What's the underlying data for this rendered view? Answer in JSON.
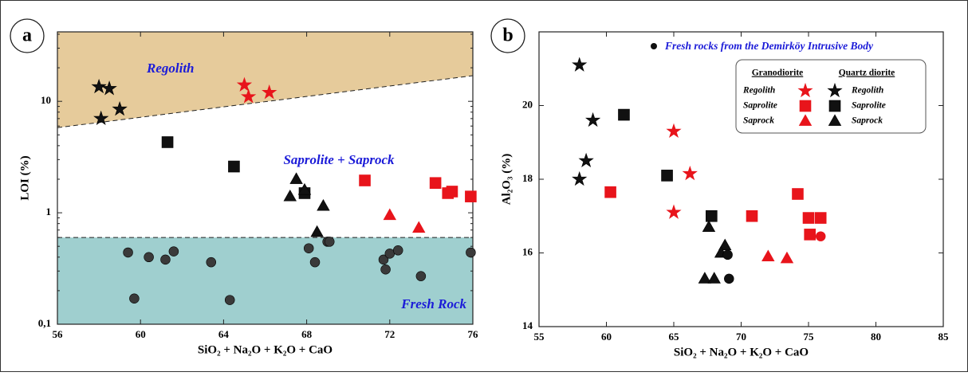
{
  "chart_data": [
    {
      "type": "scatter",
      "panel": "a",
      "log_y": true,
      "xlabel": "SiO₂ + Na₂O + K₂O + CaO",
      "ylabel": "LOI (%)",
      "xlim": [
        56,
        76
      ],
      "xticks": [
        56,
        60,
        64,
        68,
        72,
        76
      ],
      "ylim": [
        0.1,
        42
      ],
      "yticks": [
        {
          "value": 0.1,
          "label": "0,1"
        },
        1,
        10
      ],
      "annotations": [
        "Regolith",
        "Saprolite + Saprock",
        "Fresh Rock"
      ],
      "lines": [
        {
          "x": [
            56,
            76
          ],
          "y": [
            5.8,
            17
          ]
        },
        {
          "x": [
            56,
            76
          ],
          "y": [
            0.6,
            0.6
          ]
        }
      ],
      "series": [
        {
          "marker": "star",
          "color": "#e8141b",
          "x": [
            65,
            65.2,
            66.2
          ],
          "y": [
            14,
            11,
            12
          ]
        },
        {
          "marker": "star",
          "color": "#111111",
          "x": [
            58,
            58.5,
            59,
            58.1
          ],
          "y": [
            13.5,
            13,
            8.5,
            7
          ]
        },
        {
          "marker": "square",
          "color": "#e8141b",
          "x": [
            70.8,
            74.2,
            74.8,
            75,
            75.9
          ],
          "y": [
            1.95,
            1.85,
            1.5,
            1.55,
            1.4
          ]
        },
        {
          "marker": "square",
          "color": "#111111",
          "x": [
            61.3,
            64.5,
            67.9
          ],
          "y": [
            4.3,
            2.6,
            1.5
          ]
        },
        {
          "marker": "triangle",
          "color": "#e8141b",
          "x": [
            72,
            73.4
          ],
          "y": [
            0.95,
            0.73
          ]
        },
        {
          "marker": "triangle",
          "color": "#111111",
          "x": [
            67.5,
            67.2,
            67.9,
            68.8,
            68.5
          ],
          "y": [
            2.0,
            1.4,
            1.6,
            1.15,
            0.67
          ]
        },
        {
          "marker": "circle",
          "color": "#3a3a3a",
          "x": [
            59.4,
            59.7,
            60.4,
            61.2,
            61.6,
            63.4,
            64.3,
            68.1,
            68.4,
            69,
            69.1,
            71.7,
            71.8,
            72,
            72.4,
            73.5,
            75.9
          ],
          "y": [
            0.44,
            0.17,
            0.4,
            0.38,
            0.45,
            0.36,
            0.165,
            0.48,
            0.36,
            0.55,
            0.55,
            0.38,
            0.31,
            0.43,
            0.46,
            0.27,
            0.44
          ]
        }
      ]
    },
    {
      "type": "scatter",
      "panel": "b",
      "log_y": false,
      "xlabel": "SiO₂ + Na₂O + K₂O + CaO",
      "ylabel": "Al₂O₃ (%)",
      "xlim": [
        55,
        85
      ],
      "xticks": [
        55,
        60,
        65,
        70,
        75,
        80,
        85
      ],
      "ylim": [
        14,
        22
      ],
      "yticks": [
        14,
        16,
        18,
        20
      ],
      "note": "Fresh rocks from the Demirköy Intrusive Body",
      "legend_headers": [
        "Granodiorite",
        "Quartz diorite"
      ],
      "series": [
        {
          "name": "Regolith",
          "marker": "star",
          "color": "#e8141b",
          "x": [
            65,
            66.2,
            65
          ],
          "y": [
            19.3,
            18.15,
            17.1
          ]
        },
        {
          "name": "Regolith",
          "marker": "star",
          "color": "#111111",
          "x": [
            58,
            59,
            58.5,
            58
          ],
          "y": [
            21.1,
            19.6,
            18.5,
            18
          ]
        },
        {
          "name": "Saprolite",
          "marker": "square",
          "color": "#e8141b",
          "x": [
            60.3,
            70.8,
            74.2,
            75,
            75.9,
            75.1
          ],
          "y": [
            17.65,
            17,
            17.6,
            16.95,
            16.95,
            16.5
          ]
        },
        {
          "name": "Saprolite",
          "marker": "square",
          "color": "#111111",
          "x": [
            61.3,
            64.5,
            67.8
          ],
          "y": [
            19.75,
            18.1,
            17
          ]
        },
        {
          "name": "Saprock",
          "marker": "triangle",
          "color": "#e8141b",
          "x": [
            72,
            73.4
          ],
          "y": [
            15.9,
            15.85
          ]
        },
        {
          "name": "Saprock",
          "marker": "triangle",
          "color": "#111111",
          "x": [
            67.6,
            68.8,
            68.5,
            67.3,
            68
          ],
          "y": [
            16.7,
            16.2,
            16,
            15.3,
            15.3
          ]
        },
        {
          "marker": "circle",
          "color": "#e8141b",
          "x": [
            75.9
          ],
          "y": [
            16.45
          ]
        },
        {
          "marker": "circle",
          "color": "#111111",
          "x": [
            69,
            69.1
          ],
          "y": [
            15.95,
            15.3
          ]
        }
      ]
    }
  ]
}
